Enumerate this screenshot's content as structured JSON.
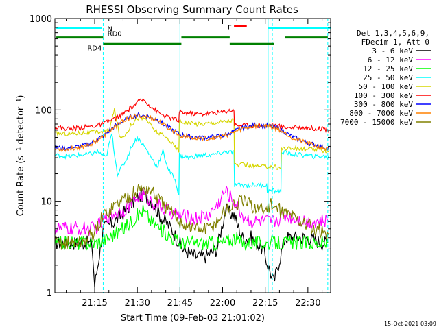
{
  "chart_data": {
    "type": "line",
    "title": "RHESSI Observing Summary Count Rates",
    "xlabel": "Start Time (09-Feb-03 21:01:02)",
    "ylabel": "Count Rate (s⁻¹ detector⁻¹)",
    "y_scale": "log",
    "ylim": [
      1,
      1000
    ],
    "xlim_minutes": [
      61,
      158
    ],
    "x_ticks": [
      {
        "minute": 75,
        "label": "21:15"
      },
      {
        "minute": 90,
        "label": "21:30"
      },
      {
        "minute": 105,
        "label": "21:45"
      },
      {
        "minute": 120,
        "label": "22:00"
      },
      {
        "minute": 135,
        "label": "22:15"
      },
      {
        "minute": 150,
        "label": "22:30"
      }
    ],
    "y_ticks": [
      {
        "value": 1,
        "label": "1"
      },
      {
        "value": 10,
        "label": "10"
      },
      {
        "value": 100,
        "label": "100"
      },
      {
        "value": 1000,
        "label": "1000"
      }
    ],
    "legend_header": [
      "Det 1,3,4,5,6,9,",
      "FDecim 1, Att 0"
    ],
    "series": [
      {
        "name": "3 - 6 keV",
        "color": "#000000",
        "x": [
          61,
          70,
          74,
          75,
          78,
          82,
          86,
          90,
          92,
          95,
          98,
          102,
          106,
          110,
          114,
          118,
          121,
          124,
          127,
          130,
          134,
          138,
          142,
          146,
          150,
          155,
          157
        ],
        "y": [
          3.5,
          3.5,
          3.5,
          1.2,
          5,
          6,
          8,
          11,
          12,
          10,
          7,
          5,
          3,
          2.5,
          2.5,
          3,
          8,
          7,
          4,
          4,
          3,
          1.3,
          4,
          4,
          4,
          3.5,
          3.5
        ]
      },
      {
        "name": "6 - 12 keV",
        "color": "#ff00ff",
        "x": [
          61,
          65,
          70,
          75,
          80,
          85,
          90,
          92,
          95,
          100,
          105,
          110,
          115,
          118,
          121,
          124,
          127,
          130,
          134,
          138,
          142,
          146,
          150,
          155,
          157
        ],
        "y": [
          5,
          5,
          5,
          5,
          7,
          8,
          11,
          12,
          10,
          8,
          7,
          6.5,
          7,
          9,
          13,
          10,
          7,
          6,
          6,
          6,
          7,
          6.5,
          6,
          6,
          6
        ]
      },
      {
        "name": "12 - 25 keV",
        "color": "#00ff00",
        "x": [
          61,
          66,
          70,
          75,
          80,
          85,
          90,
          92,
          95,
          100,
          105,
          110,
          115,
          120,
          124,
          127,
          130,
          134,
          138,
          142,
          146,
          150,
          155,
          157
        ],
        "y": [
          3.5,
          3.5,
          3.5,
          3.5,
          4,
          5,
          7,
          8,
          6,
          4.5,
          3.5,
          3.5,
          3.5,
          3.5,
          4,
          3.5,
          3.5,
          3.5,
          3.5,
          3.5,
          3.5,
          3.5,
          3.5,
          3.5
        ]
      },
      {
        "name": "25 - 50 keV",
        "color": "#00ffff",
        "x": [
          61,
          66,
          70,
          74,
          76,
          79,
          81,
          83,
          86,
          88,
          90,
          92,
          95,
          97,
          99,
          101,
          103,
          104.6,
          104.8,
          108,
          112,
          116,
          120,
          122,
          124,
          124.2,
          126,
          130,
          134,
          135.5,
          135.7,
          138,
          140.5,
          140.7,
          144,
          148,
          152,
          156,
          157.5
        ],
        "y": [
          32,
          31,
          32,
          33,
          35,
          30,
          55,
          20,
          28,
          40,
          50,
          42,
          30,
          24,
          35,
          22,
          18,
          12,
          32,
          30,
          32,
          32,
          34,
          35,
          34,
          15,
          15,
          15,
          15,
          15,
          13,
          13,
          13,
          35,
          33,
          32,
          31,
          31,
          30
        ]
      },
      {
        "name": "50 - 100 keV",
        "color": "#d6d600",
        "x": [
          61,
          66,
          70,
          74,
          78,
          80,
          82,
          84,
          86,
          88,
          90,
          93,
          96,
          99,
          101,
          103,
          104.6,
          104.8,
          108,
          112,
          116,
          120,
          122,
          124,
          124.2,
          128,
          132,
          135,
          138,
          140.5,
          140.7,
          144,
          148,
          152,
          156,
          157.5
        ],
        "y": [
          55,
          55,
          56,
          57,
          58,
          60,
          100,
          48,
          55,
          70,
          82,
          80,
          60,
          52,
          48,
          40,
          35,
          75,
          72,
          70,
          72,
          74,
          76,
          78,
          25,
          25,
          24,
          24,
          24,
          23,
          38,
          38,
          37,
          37,
          36,
          35
        ]
      },
      {
        "name": "100 - 300 keV",
        "color": "#ff0000",
        "x": [
          61,
          66,
          70,
          74,
          78,
          82,
          86,
          90,
          92,
          94,
          97,
          100,
          103,
          104.6,
          104.8,
          108,
          112,
          116,
          120,
          122,
          124,
          124.2,
          128,
          132,
          136,
          140,
          144,
          148,
          152,
          156,
          157.5
        ],
        "y": [
          65,
          62,
          64,
          66,
          70,
          80,
          95,
          120,
          130,
          115,
          95,
          85,
          80,
          75,
          95,
          92,
          90,
          92,
          95,
          98,
          100,
          68,
          68,
          67,
          68,
          66,
          64,
          64,
          63,
          62,
          60
        ]
      },
      {
        "name": "300 - 800 keV",
        "color": "#0000ff",
        "x": [
          61,
          65,
          70,
          74,
          78,
          82,
          86,
          90,
          93,
          97,
          101,
          105,
          110,
          115,
          120,
          124,
          128,
          132,
          136,
          140,
          144,
          148,
          152,
          156,
          157.5
        ],
        "y": [
          39,
          38,
          40,
          44,
          52,
          66,
          80,
          88,
          86,
          78,
          64,
          54,
          50,
          50,
          52,
          58,
          65,
          68,
          67,
          62,
          52,
          46,
          42,
          39,
          37
        ]
      },
      {
        "name": "800 - 7000 keV",
        "color": "#ff8000",
        "x": [
          61,
          65,
          70,
          74,
          78,
          82,
          86,
          90,
          93,
          97,
          101,
          105,
          110,
          115,
          120,
          124,
          128,
          132,
          136,
          140,
          144,
          148,
          152,
          156,
          157.5
        ],
        "y": [
          37,
          37,
          39,
          43,
          51,
          65,
          79,
          86,
          85,
          77,
          63,
          53,
          49,
          49,
          51,
          57,
          64,
          67,
          66,
          61,
          51,
          45,
          41,
          38,
          36
        ]
      },
      {
        "name": "7000 - 15000 keV",
        "color": "#808000",
        "x": [
          61,
          66,
          70,
          75,
          78,
          82,
          86,
          90,
          92,
          95,
          98,
          101,
          105,
          110,
          115,
          118,
          121,
          124,
          127,
          130,
          134,
          137,
          140,
          144,
          148,
          152,
          156,
          157.5
        ],
        "y": [
          3.5,
          3.5,
          3.5,
          4.5,
          7,
          9,
          11,
          13,
          14,
          13,
          10,
          8,
          6,
          5,
          5,
          6,
          8,
          9,
          10,
          9,
          8,
          9,
          8,
          7,
          6,
          5,
          4.5,
          4.5
        ]
      }
    ],
    "annotations": [
      {
        "text": "N",
        "color": "#00ffff"
      },
      {
        "text": "RD0",
        "color": "#008000"
      },
      {
        "text": "RD4",
        "color": "#008000"
      },
      {
        "text": "F",
        "color": "#ff0000"
      }
    ],
    "flag_bars": {
      "N": {
        "color": "#00ffff",
        "level": 780,
        "segments": [
          [
            61.5,
            77.5
          ],
          [
            136,
            158
          ]
        ]
      },
      "RD0": {
        "color": "#008000",
        "level": 620,
        "segments": [
          [
            61.5,
            78
          ],
          [
            105.5,
            122.5
          ],
          [
            142,
            157
          ]
        ]
      },
      "RD4": {
        "color": "#008000",
        "level": 525,
        "segments": [
          [
            78,
            105.5
          ],
          [
            122.5,
            138
          ]
        ]
      },
      "F": {
        "color": "#ff0000",
        "level": 820,
        "segments": [
          [
            124,
            128.5
          ]
        ]
      }
    },
    "vertical_markers": {
      "solid": {
        "color": "#00ffff",
        "x": [
          105,
          136
        ]
      },
      "dashed": {
        "color": "#00ffff",
        "x": [
          78,
          137.5,
          157
        ]
      }
    },
    "grid": false,
    "legend_position": "right"
  },
  "timestamp": "15-Oct-2021 03:09"
}
